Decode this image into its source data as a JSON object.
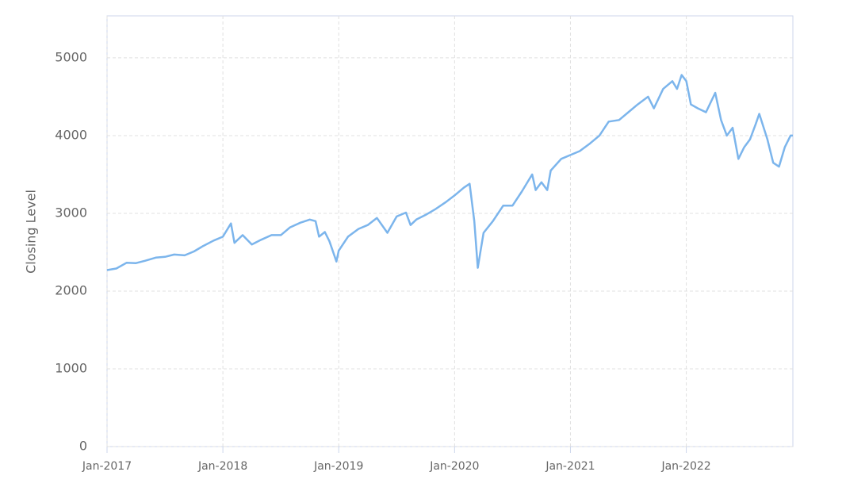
{
  "chart_data": {
    "type": "line",
    "y_label": "Closing Level",
    "x": [
      2017.0,
      2017.08,
      2017.17,
      2017.25,
      2017.33,
      2017.42,
      2017.5,
      2017.58,
      2017.67,
      2017.75,
      2017.83,
      2017.92,
      2018.0,
      2018.07,
      2018.1,
      2018.17,
      2018.25,
      2018.33,
      2018.42,
      2018.5,
      2018.58,
      2018.67,
      2018.75,
      2018.8,
      2018.83,
      2018.88,
      2018.92,
      2018.98,
      2019.0,
      2019.08,
      2019.17,
      2019.25,
      2019.33,
      2019.42,
      2019.5,
      2019.58,
      2019.62,
      2019.67,
      2019.75,
      2019.83,
      2019.92,
      2020.0,
      2020.08,
      2020.13,
      2020.17,
      2020.2,
      2020.22,
      2020.25,
      2020.33,
      2020.42,
      2020.5,
      2020.58,
      2020.67,
      2020.7,
      2020.75,
      2020.8,
      2020.83,
      2020.92,
      2021.0,
      2021.08,
      2021.17,
      2021.25,
      2021.33,
      2021.42,
      2021.5,
      2021.58,
      2021.67,
      2021.72,
      2021.8,
      2021.88,
      2021.92,
      2021.96,
      2022.0,
      2022.04,
      2022.1,
      2022.17,
      2022.25,
      2022.3,
      2022.35,
      2022.4,
      2022.45,
      2022.5,
      2022.55,
      2022.6,
      2022.63,
      2022.7,
      2022.75,
      2022.8,
      2022.85,
      2022.9,
      2022.92
    ],
    "series": [
      {
        "color": "#7cb5ec",
        "values": [
          2270,
          2290,
          2365,
          2360,
          2390,
          2430,
          2440,
          2470,
          2460,
          2510,
          2580,
          2650,
          2700,
          2870,
          2620,
          2720,
          2600,
          2660,
          2720,
          2720,
          2820,
          2880,
          2920,
          2900,
          2700,
          2760,
          2640,
          2380,
          2520,
          2700,
          2800,
          2850,
          2940,
          2750,
          2960,
          3010,
          2850,
          2920,
          2980,
          3050,
          3140,
          3230,
          3330,
          3380,
          2900,
          2300,
          2480,
          2750,
          2900,
          3100,
          3100,
          3280,
          3500,
          3300,
          3400,
          3300,
          3550,
          3700,
          3750,
          3800,
          3900,
          4000,
          4180,
          4200,
          4300,
          4400,
          4500,
          4350,
          4600,
          4700,
          4600,
          4780,
          4700,
          4400,
          4350,
          4300,
          4550,
          4200,
          4000,
          4100,
          3700,
          3850,
          3950,
          4150,
          4280,
          3950,
          3650,
          3600,
          3850,
          4000,
          4000
        ]
      }
    ],
    "xlim": [
      2017,
      2022.92
    ],
    "xticks": [
      {
        "value": 2017,
        "label": "Jan-2017"
      },
      {
        "value": 2018,
        "label": "Jan-2018"
      },
      {
        "value": 2019,
        "label": "Jan-2019"
      },
      {
        "value": 2020,
        "label": "Jan-2020"
      },
      {
        "value": 2021,
        "label": "Jan-2021"
      },
      {
        "value": 2022,
        "label": "Jan-2022"
      }
    ],
    "ylim": [
      0,
      5540
    ],
    "yticks": [
      0,
      1000,
      2000,
      3000,
      4000,
      5000
    ],
    "grid": true
  }
}
